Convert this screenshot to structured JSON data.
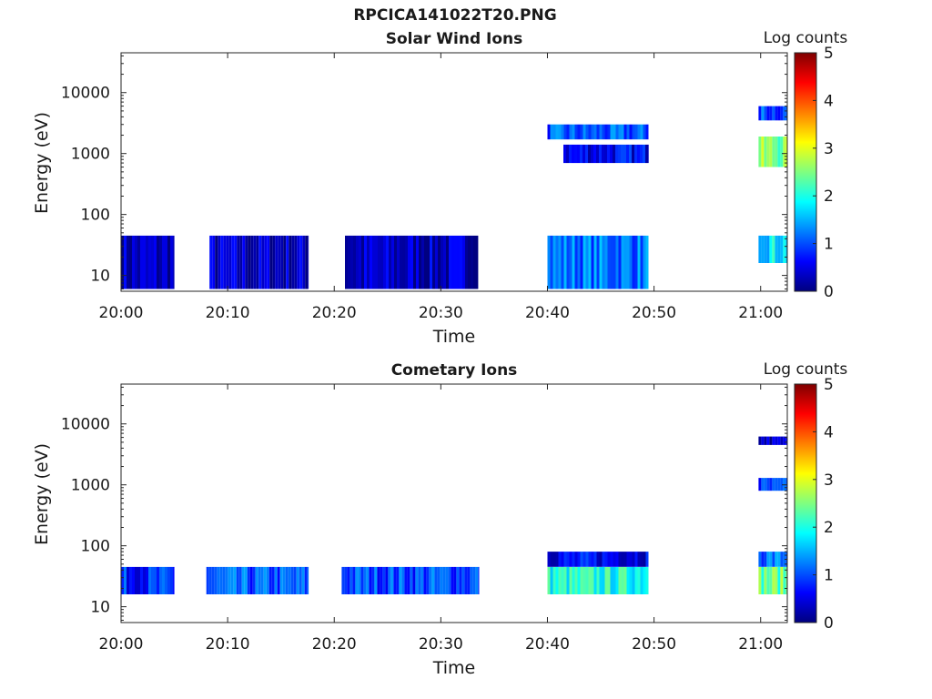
{
  "page_title": "RPCICA141022T20.PNG",
  "colors": {
    "background": "#ffffff",
    "axis": "#262626"
  },
  "chart_data": [
    {
      "type": "heatmap",
      "title": "Solar Wind Ions",
      "xlabel": "Time",
      "ylabel": "Energy (eV)",
      "x_ticks": [
        "20:00",
        "20:10",
        "20:20",
        "20:30",
        "20:40",
        "20:50",
        "21:00"
      ],
      "x_range": [
        "20:00",
        "21:02.5"
      ],
      "y_scale": "log",
      "y_ticks": [
        "10",
        "100",
        "1000",
        "10000"
      ],
      "y_range": [
        5.5,
        45000
      ],
      "colorbar": {
        "label": "Log counts",
        "ticks": [
          "0",
          "1",
          "2",
          "3",
          "4",
          "5"
        ],
        "range": [
          0,
          5
        ],
        "colormap": "jet"
      },
      "intervals": [
        {
          "start": "20:00.0",
          "end": "20:05.0",
          "energy_range": [
            6,
            45
          ],
          "log_counts": 0.3
        },
        {
          "start": "20:08.3",
          "end": "20:17.6",
          "energy_range": [
            6,
            45
          ],
          "log_counts": 0.3
        },
        {
          "start": "20:21.0",
          "end": "20:33.5",
          "energy_range": [
            6,
            45
          ],
          "log_counts": 0.3
        },
        {
          "start": "20:40.0",
          "end": "20:49.5",
          "energy_range": [
            6,
            45
          ],
          "log_counts": 1.2
        },
        {
          "start": "20:40.0",
          "end": "20:49.5",
          "energy_range": [
            1700,
            3000
          ],
          "log_counts": 1.0
        },
        {
          "start": "20:41.5",
          "end": "20:49.5",
          "energy_range": [
            700,
            1400
          ],
          "log_counts": 0.6
        },
        {
          "start": "20:59.8",
          "end": "21:02.5",
          "energy_range": [
            16,
            45
          ],
          "log_counts": 1.8
        },
        {
          "start": "20:59.8",
          "end": "21:02.5",
          "energy_range": [
            600,
            1900
          ],
          "log_counts": 2.5
        },
        {
          "start": "20:59.8",
          "end": "21:02.5",
          "energy_range": [
            3500,
            6000
          ],
          "log_counts": 1.0
        }
      ]
    },
    {
      "type": "heatmap",
      "title": "Cometary Ions",
      "xlabel": "Time",
      "ylabel": "Energy (eV)",
      "x_ticks": [
        "20:00",
        "20:10",
        "20:20",
        "20:30",
        "20:40",
        "20:50",
        "21:00"
      ],
      "x_range": [
        "20:00",
        "21:02.5"
      ],
      "y_scale": "log",
      "y_ticks": [
        "10",
        "100",
        "1000",
        "10000"
      ],
      "y_range": [
        5.5,
        45000
      ],
      "colorbar": {
        "label": "Log counts",
        "ticks": [
          "0",
          "1",
          "2",
          "3",
          "4",
          "5"
        ],
        "range": [
          0,
          5
        ],
        "colormap": "jet"
      },
      "intervals": [
        {
          "start": "20:00.0",
          "end": "20:05.0",
          "energy_range": [
            16,
            45
          ],
          "log_counts": 0.8
        },
        {
          "start": "20:08.0",
          "end": "20:17.6",
          "energy_range": [
            16,
            45
          ],
          "log_counts": 1.0
        },
        {
          "start": "20:20.7",
          "end": "20:33.6",
          "energy_range": [
            16,
            45
          ],
          "log_counts": 1.0
        },
        {
          "start": "20:40.0",
          "end": "20:49.5",
          "energy_range": [
            16,
            45
          ],
          "log_counts": 2.0
        },
        {
          "start": "20:40.0",
          "end": "20:49.5",
          "energy_range": [
            45,
            80
          ],
          "log_counts": 0.6
        },
        {
          "start": "20:59.8",
          "end": "21:02.5",
          "energy_range": [
            16,
            45
          ],
          "log_counts": 2.4
        },
        {
          "start": "20:59.8",
          "end": "21:02.5",
          "energy_range": [
            45,
            80
          ],
          "log_counts": 1.2
        },
        {
          "start": "20:59.8",
          "end": "21:02.5",
          "energy_range": [
            800,
            1300
          ],
          "log_counts": 0.8
        },
        {
          "start": "20:59.8",
          "end": "21:02.5",
          "energy_range": [
            4500,
            6200
          ],
          "log_counts": 0.3
        }
      ]
    }
  ]
}
